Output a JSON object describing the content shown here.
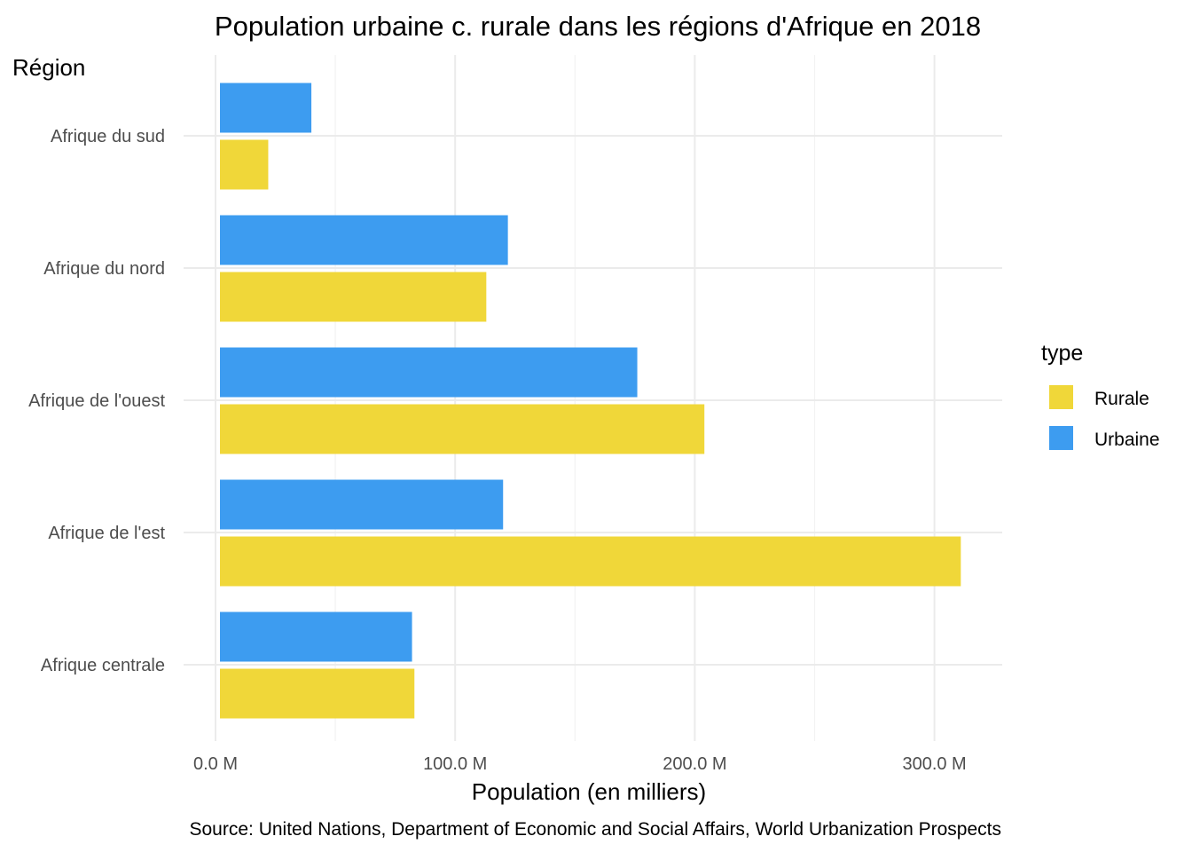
{
  "chart_data": {
    "type": "bar",
    "orientation": "horizontal",
    "title": "Population urbaine c. rurale dans les régions d'Afrique en 2018",
    "ylabel": "Région",
    "xlabel": "Population (en milliers)",
    "caption": "Source: United Nations, Department of Economic and Social Affairs, World Urbanization Prospects",
    "categories": [
      "Afrique du sud",
      "Afrique du nord",
      "Afrique de l'ouest",
      "Afrique de l'est",
      "Afrique centrale"
    ],
    "series": [
      {
        "name": "Urbaine",
        "color": "#3d9cf0",
        "values": [
          40,
          122,
          176,
          120,
          82
        ]
      },
      {
        "name": "Rurale",
        "color": "#f0d739",
        "values": [
          22,
          113,
          204,
          311,
          83
        ]
      }
    ],
    "x_ticks": [
      {
        "value": 0,
        "label": "0.0 M"
      },
      {
        "value": 100,
        "label": "100.0 M"
      },
      {
        "value": 200,
        "label": "200.0 M"
      },
      {
        "value": 300,
        "label": "300.0 M"
      }
    ],
    "xlim": [
      0,
      330
    ],
    "grid": true,
    "legend": {
      "title": "type",
      "placement": "right",
      "entries": [
        {
          "label": "Rurale",
          "color": "#f0d739"
        },
        {
          "label": "Urbaine",
          "color": "#3d9cf0"
        }
      ]
    }
  }
}
